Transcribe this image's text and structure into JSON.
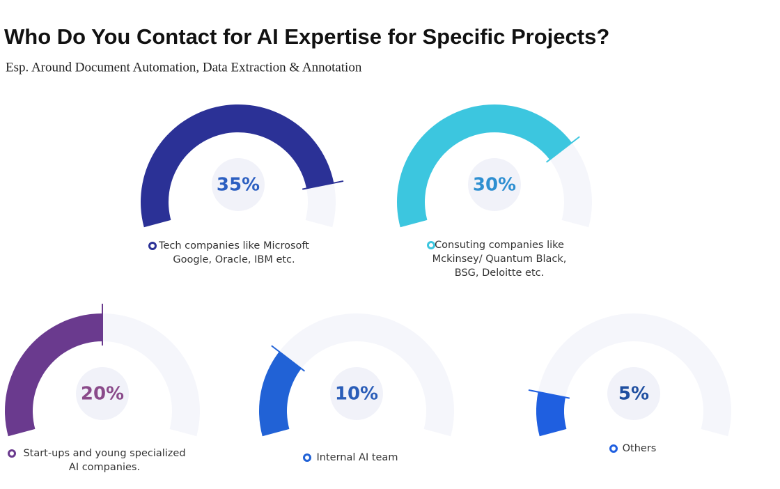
{
  "title": "Who Do You Contact for AI Expertise for Specific Projects?",
  "subtitle": "Esp. Around Document Automation, Data Extraction & Annotation",
  "chart_data": [
    {
      "type": "gauge",
      "values": [
        35
      ],
      "value_labels": [
        "35%"
      ],
      "ylim": [
        0,
        40
      ],
      "color": "#2b3196",
      "label_color": "#2c5fc1",
      "name_lines": [
        "Tech companies like Microsoft",
        "Google, Oracle, IBM etc."
      ]
    },
    {
      "type": "gauge",
      "values": [
        30
      ],
      "value_labels": [
        "30%"
      ],
      "ylim": [
        0,
        40
      ],
      "color": "#3cc6df",
      "label_color": "#2e8fd1",
      "name_lines": [
        "Consuting companies like",
        "Mckinsey/ Quantum Black,",
        "BSG, Deloitte etc."
      ]
    },
    {
      "type": "gauge",
      "values": [
        20
      ],
      "value_labels": [
        "20%"
      ],
      "ylim": [
        0,
        40
      ],
      "color": "#6a3a8e",
      "label_color": "#8a4a8a",
      "name_lines": [
        "Start-ups and young specialized",
        "AI companies."
      ]
    },
    {
      "type": "gauge",
      "values": [
        10
      ],
      "value_labels": [
        "10%"
      ],
      "ylim": [
        0,
        40
      ],
      "color": "#2162d6",
      "label_color": "#2a5db8",
      "name_lines": [
        "Internal AI team"
      ]
    },
    {
      "type": "gauge",
      "values": [
        5
      ],
      "value_labels": [
        "5%"
      ],
      "ylim": [
        0,
        40
      ],
      "color": "#1f5fe0",
      "label_color": "#1f4fa0",
      "name_lines": [
        "Others"
      ]
    }
  ]
}
